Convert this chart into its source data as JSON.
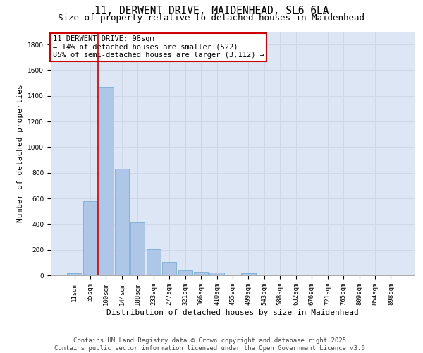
{
  "title_line1": "11, DERWENT DRIVE, MAIDENHEAD, SL6 6LA",
  "title_line2": "Size of property relative to detached houses in Maidenhead",
  "xlabel": "Distribution of detached houses by size in Maidenhead",
  "ylabel": "Number of detached properties",
  "categories": [
    "11sqm",
    "55sqm",
    "100sqm",
    "144sqm",
    "188sqm",
    "233sqm",
    "277sqm",
    "321sqm",
    "366sqm",
    "410sqm",
    "455sqm",
    "499sqm",
    "543sqm",
    "588sqm",
    "632sqm",
    "676sqm",
    "721sqm",
    "765sqm",
    "809sqm",
    "854sqm",
    "898sqm"
  ],
  "values": [
    15,
    580,
    1470,
    830,
    415,
    205,
    105,
    40,
    25,
    20,
    0,
    15,
    0,
    0,
    5,
    0,
    0,
    0,
    0,
    0,
    0
  ],
  "bar_color": "#aec6e8",
  "bar_edge_color": "#7aadd4",
  "red_line_index": 2,
  "annotation_title": "11 DERWENT DRIVE: 98sqm",
  "annotation_line1": "← 14% of detached houses are smaller (522)",
  "annotation_line2": "85% of semi-detached houses are larger (3,112) →",
  "annotation_box_color": "#ffffff",
  "annotation_box_edge": "#cc0000",
  "red_line_color": "#cc0000",
  "grid_color": "#d0d8e8",
  "background_color": "#dce6f5",
  "ylim": [
    0,
    1900
  ],
  "yticks": [
    0,
    200,
    400,
    600,
    800,
    1000,
    1200,
    1400,
    1600,
    1800
  ],
  "footer_line1": "Contains HM Land Registry data © Crown copyright and database right 2025.",
  "footer_line2": "Contains public sector information licensed under the Open Government Licence v3.0.",
  "title_fontsize": 10.5,
  "subtitle_fontsize": 9,
  "axis_label_fontsize": 8,
  "tick_fontsize": 6.5,
  "annotation_fontsize": 7.5,
  "footer_fontsize": 6.5
}
